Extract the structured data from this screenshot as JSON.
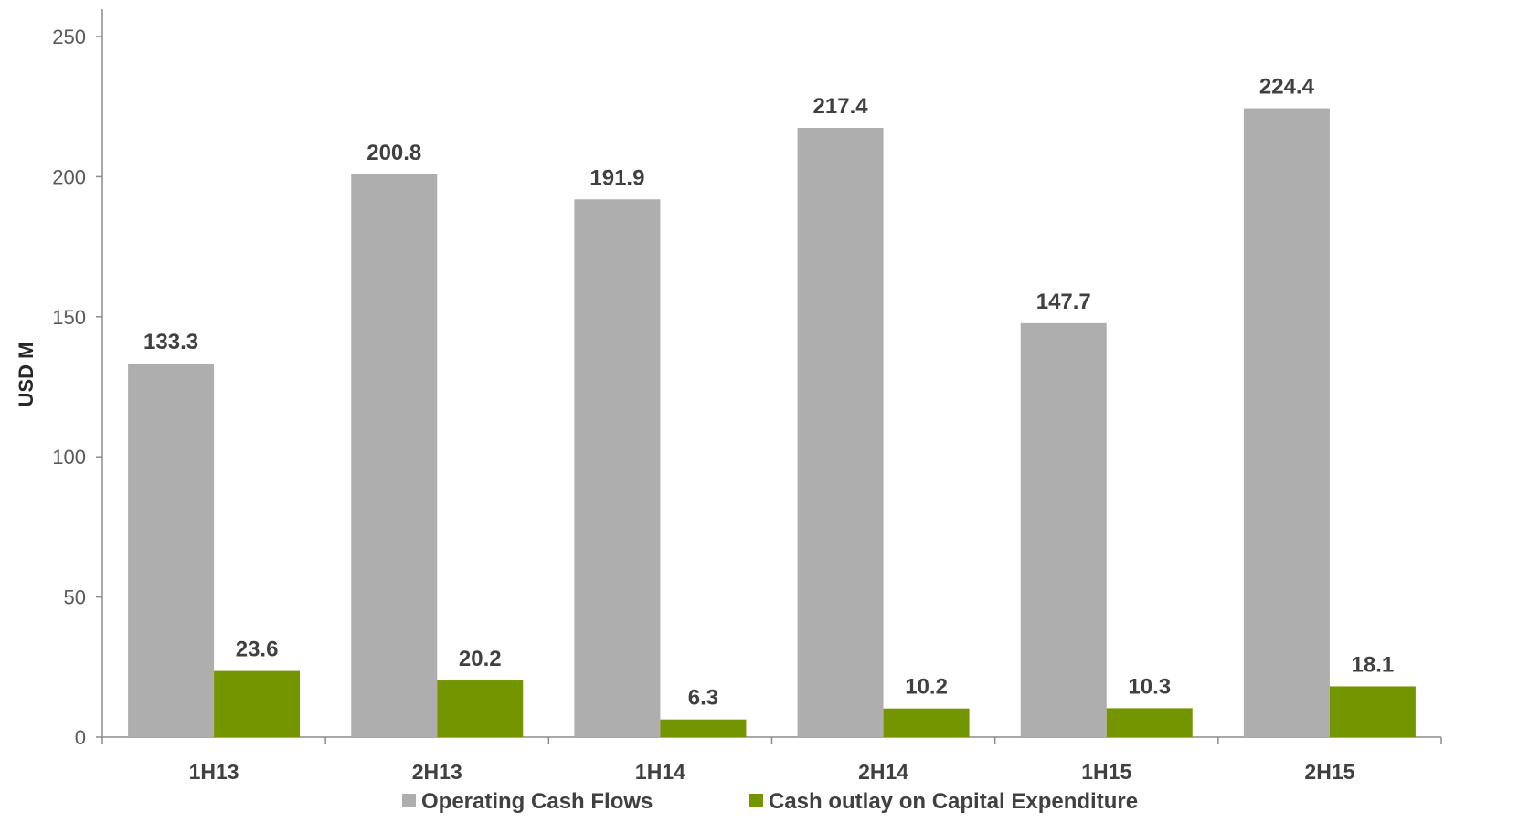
{
  "chart_data": {
    "type": "bar",
    "title": "",
    "xlabel": "",
    "ylabel": "USD M",
    "ylim": [
      0,
      250
    ],
    "yticks": [
      0,
      50,
      100,
      150,
      200,
      250
    ],
    "grid": false,
    "legend_position": "bottom",
    "categories": [
      "1H13",
      "2H13",
      "1H14",
      "2H14",
      "1H15",
      "2H15"
    ],
    "series": [
      {
        "name": "Operating Cash Flows",
        "color": "#aeaeae",
        "values": [
          133.3,
          200.8,
          191.9,
          217.4,
          147.7,
          224.4
        ],
        "labels": [
          "133.3",
          "200.8",
          "191.9",
          "217.4",
          "147.7",
          "224.4"
        ]
      },
      {
        "name": "Cash outlay on Capital Expenditure",
        "color": "#739600",
        "values": [
          23.6,
          20.2,
          6.3,
          10.2,
          10.3,
          18.1
        ],
        "labels": [
          "23.6",
          "20.2",
          "6.3",
          "10.2",
          "10.3",
          "18.1"
        ]
      }
    ]
  }
}
